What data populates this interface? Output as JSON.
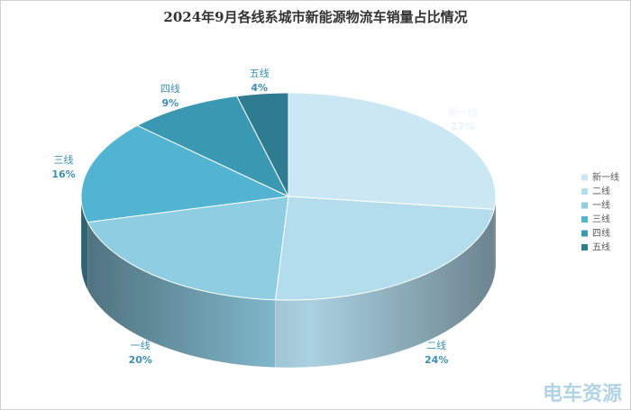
{
  "chart_data": {
    "type": "pie3d",
    "title": "2024年9月各线系城市新能源物流车销量占比情况",
    "categories": [
      "新一线",
      "二线",
      "一线",
      "三线",
      "四线",
      "五线"
    ],
    "values": [
      27,
      24,
      20,
      16,
      9,
      4
    ],
    "value_labels": [
      "27%",
      "24%",
      "20%",
      "16%",
      "9%",
      "4%"
    ],
    "colors": [
      "#cbe7f3",
      "#b3dced",
      "#8fcde3",
      "#52b4d0",
      "#3b98b3",
      "#2f7b92"
    ],
    "legend": "right",
    "watermark": "电车资源"
  }
}
